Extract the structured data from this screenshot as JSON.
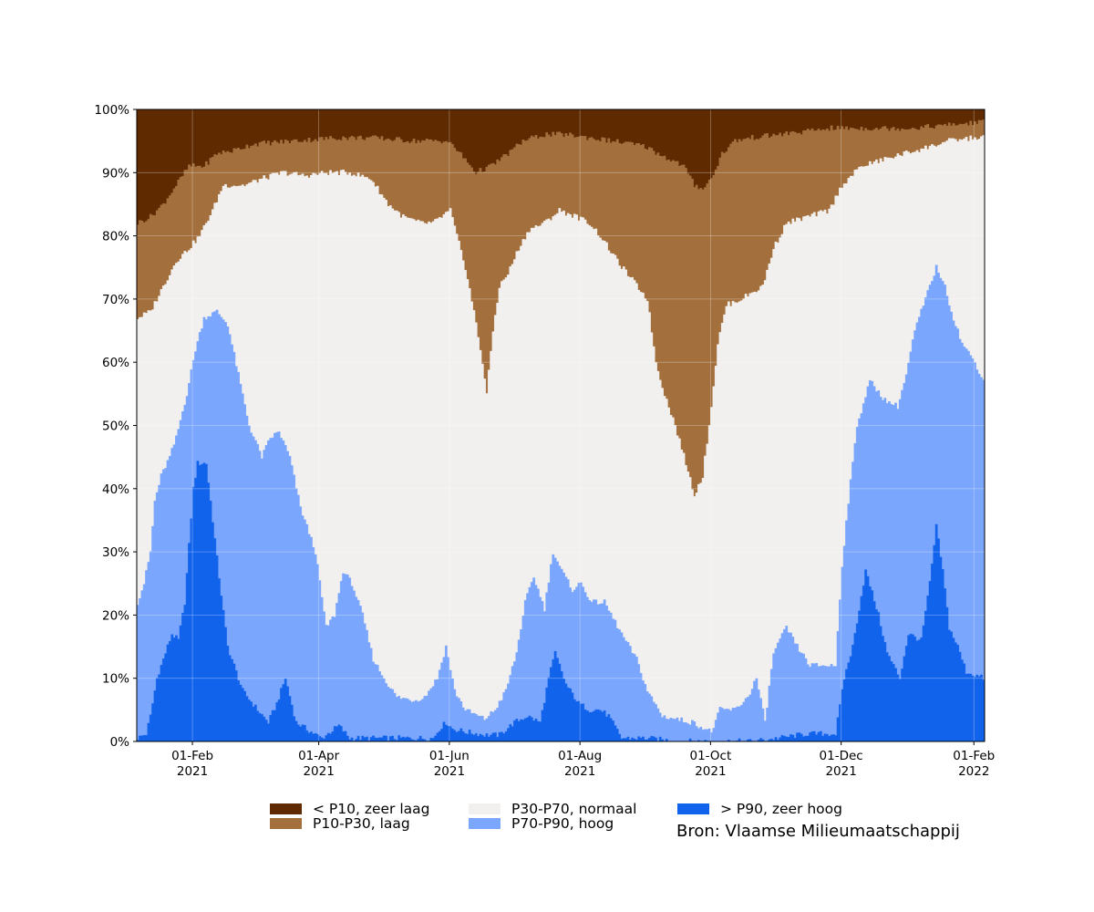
{
  "chart_data": {
    "type": "area",
    "stacked": true,
    "stacking": "percent",
    "x_axis": {
      "type": "date",
      "start": "2021-01-06",
      "end": "2022-02-05",
      "ticks": [
        {
          "date": "2021-02-01",
          "label_day": "01-Feb",
          "label_year": "2021"
        },
        {
          "date": "2021-04-01",
          "label_day": "01-Apr",
          "label_year": "2021"
        },
        {
          "date": "2021-06-01",
          "label_day": "01-Jun",
          "label_year": "2021"
        },
        {
          "date": "2021-08-01",
          "label_day": "01-Aug",
          "label_year": "2021"
        },
        {
          "date": "2021-10-01",
          "label_day": "01-Oct",
          "label_year": "2021"
        },
        {
          "date": "2021-12-01",
          "label_day": "01-Dec",
          "label_year": "2021"
        },
        {
          "date": "2022-02-01",
          "label_day": "01-Feb",
          "label_year": "2022"
        }
      ]
    },
    "y_axis": {
      "ylim": [
        0,
        100
      ],
      "ticks": [
        "0%",
        "10%",
        "20%",
        "30%",
        "40%",
        "50%",
        "60%",
        "70%",
        "80%",
        "90%",
        "100%"
      ]
    },
    "grid": true,
    "legend_placement": "bottom",
    "boundaries": [
      {
        "name": "c1",
        "points": [
          [
            "2021-01-06",
            0.5
          ],
          [
            "2021-01-10",
            1.2
          ],
          [
            "2021-01-12",
            4
          ],
          [
            "2021-01-15",
            10
          ],
          [
            "2021-01-18",
            13
          ],
          [
            "2021-01-22",
            17
          ],
          [
            "2021-01-25",
            16
          ],
          [
            "2021-01-28",
            22
          ],
          [
            "2021-02-01",
            40
          ],
          [
            "2021-02-03",
            44
          ],
          [
            "2021-02-07",
            44
          ],
          [
            "2021-02-10",
            35
          ],
          [
            "2021-02-13",
            26
          ],
          [
            "2021-02-17",
            15
          ],
          [
            "2021-02-24",
            8
          ],
          [
            "2021-03-03",
            5
          ],
          [
            "2021-03-08",
            3
          ],
          [
            "2021-03-12",
            6
          ],
          [
            "2021-03-16",
            10
          ],
          [
            "2021-03-21",
            3
          ],
          [
            "2021-03-28",
            1.5
          ],
          [
            "2021-04-02",
            0.5
          ],
          [
            "2021-04-10",
            2.5
          ],
          [
            "2021-04-15",
            0.5
          ],
          [
            "2021-05-15",
            0.5
          ],
          [
            "2021-05-24",
            0.5
          ],
          [
            "2021-05-27",
            2
          ],
          [
            "2021-05-30",
            3
          ],
          [
            "2021-06-02",
            2
          ],
          [
            "2021-06-08",
            1.5
          ],
          [
            "2021-06-18",
            1
          ],
          [
            "2021-06-24",
            1
          ],
          [
            "2021-07-01",
            3
          ],
          [
            "2021-07-07",
            4
          ],
          [
            "2021-07-13",
            3
          ],
          [
            "2021-07-17",
            10
          ],
          [
            "2021-07-20",
            14
          ],
          [
            "2021-07-25",
            9
          ],
          [
            "2021-07-31",
            6
          ],
          [
            "2021-08-05",
            5
          ],
          [
            "2021-08-10",
            5
          ],
          [
            "2021-08-14",
            4
          ],
          [
            "2021-08-20",
            0.5
          ],
          [
            "2021-09-01",
            0.5
          ],
          [
            "2021-09-15",
            0
          ],
          [
            "2021-10-01",
            0
          ],
          [
            "2021-10-20",
            0
          ],
          [
            "2021-11-01",
            0.5
          ],
          [
            "2021-11-15",
            1.2
          ],
          [
            "2021-11-28",
            1.2
          ],
          [
            "2021-12-02",
            10
          ],
          [
            "2021-12-06",
            15
          ],
          [
            "2021-12-12",
            27
          ],
          [
            "2021-12-18",
            20
          ],
          [
            "2021-12-22",
            14
          ],
          [
            "2021-12-28",
            10
          ],
          [
            "2022-01-01",
            17
          ],
          [
            "2022-01-07",
            16
          ],
          [
            "2022-01-11",
            25
          ],
          [
            "2022-01-14",
            34
          ],
          [
            "2022-01-17",
            27
          ],
          [
            "2022-01-20",
            18
          ],
          [
            "2022-01-24",
            15
          ],
          [
            "2022-01-28",
            11
          ],
          [
            "2022-02-05",
            10
          ]
        ]
      },
      {
        "name": "c2",
        "points": [
          [
            "2021-01-06",
            22
          ],
          [
            "2021-01-09",
            25
          ],
          [
            "2021-01-12",
            30
          ],
          [
            "2021-01-14",
            38
          ],
          [
            "2021-01-17",
            42
          ],
          [
            "2021-01-21",
            45
          ],
          [
            "2021-01-24",
            48
          ],
          [
            "2021-01-29",
            55
          ],
          [
            "2021-02-02",
            62
          ],
          [
            "2021-02-06",
            67
          ],
          [
            "2021-02-12",
            68
          ],
          [
            "2021-02-17",
            66
          ],
          [
            "2021-02-22",
            58
          ],
          [
            "2021-02-27",
            50
          ],
          [
            "2021-03-05",
            45
          ],
          [
            "2021-03-09",
            48
          ],
          [
            "2021-03-13",
            49
          ],
          [
            "2021-03-18",
            45
          ],
          [
            "2021-03-23",
            37
          ],
          [
            "2021-03-30",
            30
          ],
          [
            "2021-04-04",
            18
          ],
          [
            "2021-04-08",
            20
          ],
          [
            "2021-04-12",
            27
          ],
          [
            "2021-04-16",
            25
          ],
          [
            "2021-04-21",
            20
          ],
          [
            "2021-04-26",
            13
          ],
          [
            "2021-05-01",
            10
          ],
          [
            "2021-05-07",
            7
          ],
          [
            "2021-05-15",
            6.5
          ],
          [
            "2021-05-20",
            7
          ],
          [
            "2021-05-26",
            10
          ],
          [
            "2021-05-30",
            15
          ],
          [
            "2021-06-03",
            8
          ],
          [
            "2021-06-08",
            5
          ],
          [
            "2021-06-17",
            3.5
          ],
          [
            "2021-06-22",
            5
          ],
          [
            "2021-06-27",
            8
          ],
          [
            "2021-07-02",
            14
          ],
          [
            "2021-07-06",
            22
          ],
          [
            "2021-07-10",
            26
          ],
          [
            "2021-07-15",
            21
          ],
          [
            "2021-07-19",
            30
          ],
          [
            "2021-07-23",
            27
          ],
          [
            "2021-07-28",
            24
          ],
          [
            "2021-08-01",
            25
          ],
          [
            "2021-08-06",
            22
          ],
          [
            "2021-08-12",
            22
          ],
          [
            "2021-08-20",
            17
          ],
          [
            "2021-08-27",
            13
          ],
          [
            "2021-09-01",
            8
          ],
          [
            "2021-09-08",
            4
          ],
          [
            "2021-09-15",
            3.5
          ],
          [
            "2021-09-22",
            3
          ],
          [
            "2021-09-28",
            2
          ],
          [
            "2021-10-01",
            1.5
          ],
          [
            "2021-10-05",
            5
          ],
          [
            "2021-10-12",
            5
          ],
          [
            "2021-10-18",
            7
          ],
          [
            "2021-10-22",
            10
          ],
          [
            "2021-10-26",
            3
          ],
          [
            "2021-10-30",
            14
          ],
          [
            "2021-11-05",
            18
          ],
          [
            "2021-11-10",
            15
          ],
          [
            "2021-11-16",
            12
          ],
          [
            "2021-11-23",
            12
          ],
          [
            "2021-11-28",
            12
          ],
          [
            "2021-12-01",
            28
          ],
          [
            "2021-12-04",
            38
          ],
          [
            "2021-12-08",
            50
          ],
          [
            "2021-12-14",
            57
          ],
          [
            "2021-12-21",
            54
          ],
          [
            "2021-12-27",
            53
          ],
          [
            "2021-12-31",
            58
          ],
          [
            "2022-01-04",
            65
          ],
          [
            "2022-01-09",
            70
          ],
          [
            "2022-01-14",
            75
          ],
          [
            "2022-01-17",
            73
          ],
          [
            "2022-01-22",
            67
          ],
          [
            "2022-01-26",
            63
          ],
          [
            "2022-02-01",
            60
          ],
          [
            "2022-02-05",
            57
          ]
        ]
      },
      {
        "name": "c3",
        "points": [
          [
            "2021-01-06",
            67
          ],
          [
            "2021-01-12",
            68
          ],
          [
            "2021-01-18",
            72
          ],
          [
            "2021-01-24",
            76
          ],
          [
            "2021-01-30",
            78
          ],
          [
            "2021-02-04",
            80
          ],
          [
            "2021-02-10",
            84
          ],
          [
            "2021-02-15",
            88
          ],
          [
            "2021-02-25",
            88
          ],
          [
            "2021-03-05",
            89
          ],
          [
            "2021-03-15",
            90
          ],
          [
            "2021-03-25",
            89.5
          ],
          [
            "2021-04-05",
            90
          ],
          [
            "2021-04-15",
            90
          ],
          [
            "2021-04-25",
            89
          ],
          [
            "2021-05-03",
            85
          ],
          [
            "2021-05-10",
            83
          ],
          [
            "2021-05-18",
            82
          ],
          [
            "2021-05-24",
            82
          ],
          [
            "2021-06-01",
            84
          ],
          [
            "2021-06-04",
            80
          ],
          [
            "2021-06-08",
            75
          ],
          [
            "2021-06-12",
            68
          ],
          [
            "2021-06-16",
            60
          ],
          [
            "2021-06-18",
            55
          ],
          [
            "2021-06-21",
            65
          ],
          [
            "2021-06-24",
            72
          ],
          [
            "2021-06-28",
            74
          ],
          [
            "2021-07-03",
            78
          ],
          [
            "2021-07-08",
            81
          ],
          [
            "2021-07-15",
            82
          ],
          [
            "2021-07-22",
            84
          ],
          [
            "2021-07-30",
            83
          ],
          [
            "2021-08-05",
            82
          ],
          [
            "2021-08-10",
            80
          ],
          [
            "2021-08-18",
            76
          ],
          [
            "2021-08-25",
            73
          ],
          [
            "2021-09-01",
            70
          ],
          [
            "2021-09-05",
            60
          ],
          [
            "2021-09-09",
            55
          ],
          [
            "2021-09-14",
            50
          ],
          [
            "2021-09-19",
            44
          ],
          [
            "2021-09-23",
            39
          ],
          [
            "2021-09-27",
            42
          ],
          [
            "2021-10-01",
            53
          ],
          [
            "2021-10-04",
            63
          ],
          [
            "2021-10-08",
            69
          ],
          [
            "2021-10-15",
            70
          ],
          [
            "2021-10-20",
            71
          ],
          [
            "2021-10-25",
            72
          ],
          [
            "2021-10-30",
            78
          ],
          [
            "2021-11-05",
            82
          ],
          [
            "2021-11-15",
            83
          ],
          [
            "2021-11-25",
            84
          ],
          [
            "2021-12-01",
            88
          ],
          [
            "2021-12-10",
            91
          ],
          [
            "2021-12-20",
            92
          ],
          [
            "2021-12-30",
            93
          ],
          [
            "2022-01-10",
            94
          ],
          [
            "2022-01-20",
            95
          ],
          [
            "2022-02-01",
            95.5
          ],
          [
            "2022-02-05",
            95.5
          ]
        ]
      },
      {
        "name": "c4",
        "points": [
          [
            "2021-01-06",
            82
          ],
          [
            "2021-01-12",
            83
          ],
          [
            "2021-01-18",
            85
          ],
          [
            "2021-01-24",
            88
          ],
          [
            "2021-01-30",
            91
          ],
          [
            "2021-02-06",
            91
          ],
          [
            "2021-02-12",
            93
          ],
          [
            "2021-02-20",
            93.5
          ],
          [
            "2021-03-01",
            94.5
          ],
          [
            "2021-03-20",
            95
          ],
          [
            "2021-04-10",
            95.5
          ],
          [
            "2021-04-25",
            95.5
          ],
          [
            "2021-05-15",
            95
          ],
          [
            "2021-05-30",
            95
          ],
          [
            "2021-06-03",
            94
          ],
          [
            "2021-06-08",
            92
          ],
          [
            "2021-06-13",
            90
          ],
          [
            "2021-06-20",
            91
          ],
          [
            "2021-06-28",
            93
          ],
          [
            "2021-07-05",
            95
          ],
          [
            "2021-07-15",
            96
          ],
          [
            "2021-07-25",
            96
          ],
          [
            "2021-08-05",
            95.5
          ],
          [
            "2021-08-15",
            95
          ],
          [
            "2021-08-25",
            94.5
          ],
          [
            "2021-09-01",
            94
          ],
          [
            "2021-09-06",
            93
          ],
          [
            "2021-09-12",
            92
          ],
          [
            "2021-09-18",
            91
          ],
          [
            "2021-09-23",
            88
          ],
          [
            "2021-09-27",
            87.5
          ],
          [
            "2021-10-01",
            89
          ],
          [
            "2021-10-06",
            93
          ],
          [
            "2021-10-12",
            95
          ],
          [
            "2021-10-20",
            95.5
          ],
          [
            "2021-11-01",
            96
          ],
          [
            "2021-11-15",
            96.5
          ],
          [
            "2021-11-25",
            97
          ],
          [
            "2021-12-10",
            97
          ],
          [
            "2022-01-01",
            97
          ],
          [
            "2022-01-20",
            97.5
          ],
          [
            "2022-02-05",
            98
          ]
        ]
      }
    ],
    "series": [
      {
        "name": "< P10, zeer laag",
        "color": "#5f2a00",
        "lower": "c4",
        "upper": "top"
      },
      {
        "name": "P10-P30, laag",
        "color": "#a36f3c",
        "lower": "c3",
        "upper": "c4"
      },
      {
        "name": "P30-P70, normaal",
        "color": "#f2f0ef",
        "lower": "c2",
        "upper": "c3"
      },
      {
        "name": "P70-P90, hoog",
        "color": "#7aa6fd",
        "lower": "c1",
        "upper": "c2"
      },
      {
        "name": "> P90, zeer hoog",
        "color": "#1163ec",
        "lower": "bottom",
        "upper": "c1"
      }
    ]
  },
  "legend": {
    "items": [
      {
        "label": "< P10, zeer laag",
        "color": "#5f2a00"
      },
      {
        "label": "P10-P30, laag",
        "color": "#a36f3c"
      },
      {
        "label": "P30-P70, normaal",
        "color": "#f2f0ef"
      },
      {
        "label": "P70-P90, hoog",
        "color": "#7aa6fd"
      },
      {
        "label": "> P90, zeer hoog",
        "color": "#1163ec"
      }
    ]
  },
  "source": "Bron: Vlaamse Milieumaatschappij"
}
